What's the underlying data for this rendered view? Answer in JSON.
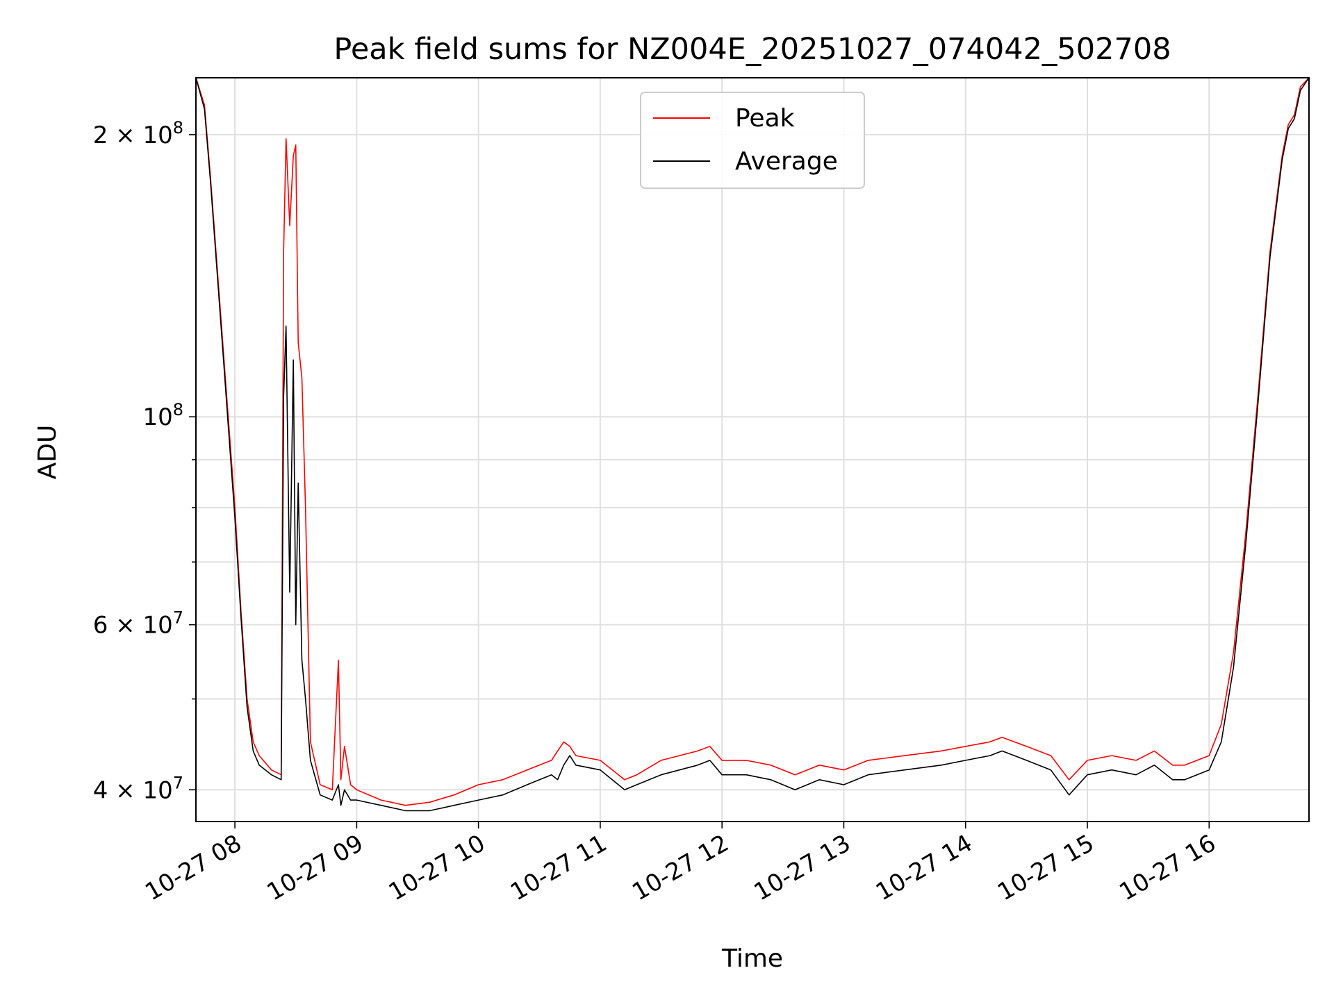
{
  "chart_data": {
    "type": "line",
    "title": "Peak field sums for NZ004E_20251027_074042_502708",
    "xlabel": "Time",
    "ylabel": "ADU",
    "yscale": "log",
    "xlim": [
      7.68,
      16.82
    ],
    "ylim": [
      37000000,
      230000000
    ],
    "grid": true,
    "legend_position": "top-center",
    "x_ticks": [
      {
        "value": 8,
        "label": "10-27 08"
      },
      {
        "value": 9,
        "label": "10-27 09"
      },
      {
        "value": 10,
        "label": "10-27 10"
      },
      {
        "value": 11,
        "label": "10-27 11"
      },
      {
        "value": 12,
        "label": "10-27 12"
      },
      {
        "value": 13,
        "label": "10-27 13"
      },
      {
        "value": 14,
        "label": "10-27 14"
      },
      {
        "value": 15,
        "label": "10-27 15"
      },
      {
        "value": 16,
        "label": "10-27 16"
      }
    ],
    "y_ticks": [
      {
        "value": 40000000,
        "mant": "4",
        "exp": "7"
      },
      {
        "value": 60000000,
        "mant": "6",
        "exp": "7"
      },
      {
        "value": 100000000,
        "mant": "",
        "exp": "8"
      },
      {
        "value": 200000000,
        "mant": "2",
        "exp": "8"
      }
    ],
    "y_minor_ticks": [
      50000000,
      70000000,
      80000000,
      90000000
    ],
    "series": [
      {
        "name": "Peak",
        "color": "#ff0000",
        "x": [
          7.68,
          7.75,
          7.8,
          7.9,
          8.0,
          8.05,
          8.1,
          8.15,
          8.2,
          8.3,
          8.38,
          8.4,
          8.42,
          8.45,
          8.48,
          8.5,
          8.52,
          8.55,
          8.58,
          8.62,
          8.7,
          8.8,
          8.85,
          8.87,
          8.9,
          8.95,
          9.0,
          9.2,
          9.4,
          9.6,
          9.8,
          10.0,
          10.2,
          10.4,
          10.6,
          10.65,
          10.7,
          10.75,
          10.8,
          11.0,
          11.2,
          11.3,
          11.5,
          11.8,
          11.9,
          12.0,
          12.2,
          12.4,
          12.6,
          12.8,
          13.0,
          13.2,
          13.5,
          13.8,
          14.0,
          14.2,
          14.3,
          14.5,
          14.7,
          14.85,
          15.0,
          15.2,
          15.4,
          15.55,
          15.7,
          15.8,
          16.0,
          16.1,
          16.2,
          16.3,
          16.4,
          16.5,
          16.6,
          16.65,
          16.7,
          16.75,
          16.82
        ],
        "y": [
          230000000,
          215000000,
          180000000,
          120000000,
          80000000,
          62000000,
          50000000,
          45000000,
          43500000,
          42000000,
          41500000,
          150000000,
          198000000,
          160000000,
          190000000,
          195000000,
          120000000,
          110000000,
          80000000,
          45000000,
          40500000,
          40000000,
          55000000,
          41000000,
          44500000,
          40500000,
          40000000,
          39000000,
          38500000,
          38800000,
          39500000,
          40500000,
          41000000,
          42000000,
          43000000,
          44000000,
          45000000,
          44500000,
          43500000,
          43000000,
          41000000,
          41500000,
          43000000,
          44000000,
          44500000,
          43000000,
          43000000,
          42500000,
          41500000,
          42500000,
          42000000,
          43000000,
          43500000,
          44000000,
          44500000,
          45000000,
          45500000,
          44500000,
          43500000,
          41000000,
          43000000,
          43500000,
          43000000,
          44000000,
          42500000,
          42500000,
          43500000,
          47000000,
          56000000,
          75000000,
          105000000,
          150000000,
          190000000,
          205000000,
          210000000,
          225000000,
          230000000
        ]
      },
      {
        "name": "Average",
        "color": "#000000",
        "x": [
          7.68,
          7.75,
          7.8,
          7.9,
          8.0,
          8.05,
          8.1,
          8.15,
          8.2,
          8.3,
          8.38,
          8.4,
          8.42,
          8.45,
          8.48,
          8.5,
          8.52,
          8.55,
          8.58,
          8.62,
          8.7,
          8.8,
          8.85,
          8.87,
          8.9,
          8.95,
          9.0,
          9.2,
          9.4,
          9.6,
          9.8,
          10.0,
          10.2,
          10.4,
          10.6,
          10.65,
          10.7,
          10.75,
          10.8,
          11.0,
          11.2,
          11.3,
          11.5,
          11.8,
          11.9,
          12.0,
          12.2,
          12.4,
          12.6,
          12.8,
          13.0,
          13.2,
          13.5,
          13.8,
          14.0,
          14.2,
          14.3,
          14.5,
          14.7,
          14.85,
          15.0,
          15.2,
          15.4,
          15.55,
          15.7,
          15.8,
          16.0,
          16.1,
          16.2,
          16.3,
          16.4,
          16.5,
          16.6,
          16.65,
          16.7,
          16.75,
          16.82
        ],
        "y": [
          230000000,
          213000000,
          178000000,
          118000000,
          78000000,
          61000000,
          49000000,
          44000000,
          42500000,
          41500000,
          41000000,
          105000000,
          125000000,
          65000000,
          115000000,
          60000000,
          85000000,
          55000000,
          50000000,
          43000000,
          39500000,
          39000000,
          40500000,
          38500000,
          40000000,
          39000000,
          39000000,
          38500000,
          38000000,
          38000000,
          38500000,
          39000000,
          39500000,
          40500000,
          41500000,
          41000000,
          42500000,
          43500000,
          42500000,
          42000000,
          40000000,
          40500000,
          41500000,
          42500000,
          43000000,
          41500000,
          41500000,
          41000000,
          40000000,
          41000000,
          40500000,
          41500000,
          42000000,
          42500000,
          43000000,
          43500000,
          44000000,
          43000000,
          42000000,
          39500000,
          41500000,
          42000000,
          41500000,
          42500000,
          41000000,
          41000000,
          42000000,
          45000000,
          54000000,
          73000000,
          103000000,
          148000000,
          188000000,
          203000000,
          208000000,
          223000000,
          230000000
        ]
      }
    ]
  }
}
